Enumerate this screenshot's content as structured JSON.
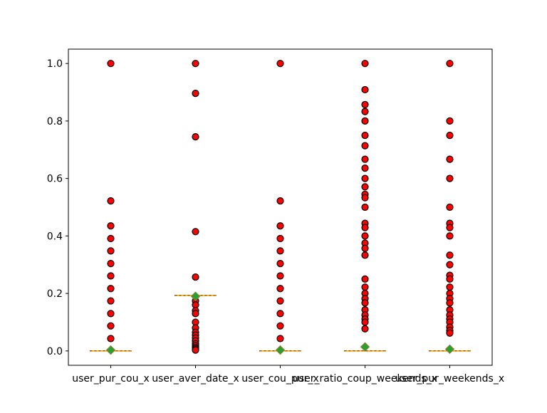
{
  "chart_data": {
    "type": "box",
    "title": "",
    "xlabel": "",
    "ylabel": "",
    "ylim": [
      -0.05,
      1.05
    ],
    "yticks": [
      0.0,
      0.2,
      0.4,
      0.6,
      0.8,
      1.0
    ],
    "ytick_labels": [
      "0.0",
      "0.2",
      "0.4",
      "0.6",
      "0.8",
      "1.0"
    ],
    "grid": false,
    "legend": "none",
    "colors": {
      "flier_fill": "#ff0000",
      "flier_edge": "#000000",
      "median_line": "#ffa500",
      "box_edge": "#000000",
      "mean_marker_fill": "#2ca02c",
      "mean_marker_edge": "#8b7d3a"
    },
    "categories": [
      "user_pur_cou_x",
      "user_aver_date_x",
      "user_cou_pur_x",
      "user_ratio_coup_weekends_x",
      "user_pur_weekends_x"
    ],
    "series": [
      {
        "category": "user_pur_cou_x",
        "q1": 0.0,
        "median": 0.0,
        "q3": 0.0,
        "mean": 0.003,
        "fliers": [
          1.0,
          0.522,
          0.435,
          0.391,
          0.348,
          0.304,
          0.261,
          0.217,
          0.174,
          0.13,
          0.087,
          0.043
        ]
      },
      {
        "category": "user_aver_date_x",
        "q1": 0.193,
        "median": 0.193,
        "q3": 0.193,
        "mean": 0.19,
        "fliers": [
          1.0,
          0.896,
          0.745,
          0.415,
          0.257,
          0.174,
          0.16,
          0.14,
          0.13,
          0.1,
          0.08,
          0.065,
          0.055,
          0.045,
          0.035,
          0.025,
          0.018,
          0.012,
          0.007,
          0.003
        ]
      },
      {
        "category": "user_cou_pur_x",
        "q1": 0.0,
        "median": 0.0,
        "q3": 0.0,
        "mean": 0.003,
        "fliers": [
          1.0,
          0.522,
          0.435,
          0.391,
          0.348,
          0.304,
          0.261,
          0.217,
          0.174,
          0.13,
          0.087,
          0.043
        ]
      },
      {
        "category": "user_ratio_coup_weekends_x",
        "q1": 0.0,
        "median": 0.0,
        "q3": 0.0,
        "mean": 0.014,
        "fliers": [
          1.0,
          0.909,
          0.857,
          0.833,
          0.8,
          0.75,
          0.714,
          0.667,
          0.636,
          0.6,
          0.571,
          0.545,
          0.533,
          0.5,
          0.444,
          0.429,
          0.4,
          0.375,
          0.357,
          0.333,
          0.25,
          0.222,
          0.2,
          0.182,
          0.167,
          0.143,
          0.125,
          0.111,
          0.1,
          0.077
        ]
      },
      {
        "category": "user_pur_weekends_x",
        "q1": 0.0,
        "median": 0.0,
        "q3": 0.0,
        "mean": 0.006,
        "fliers": [
          1.0,
          0.8,
          0.75,
          0.667,
          0.6,
          0.5,
          0.444,
          0.429,
          0.4,
          0.333,
          0.3,
          0.263,
          0.25,
          0.222,
          0.2,
          0.182,
          0.167,
          0.143,
          0.125,
          0.111,
          0.1,
          0.083,
          0.071,
          0.062
        ]
      }
    ]
  }
}
